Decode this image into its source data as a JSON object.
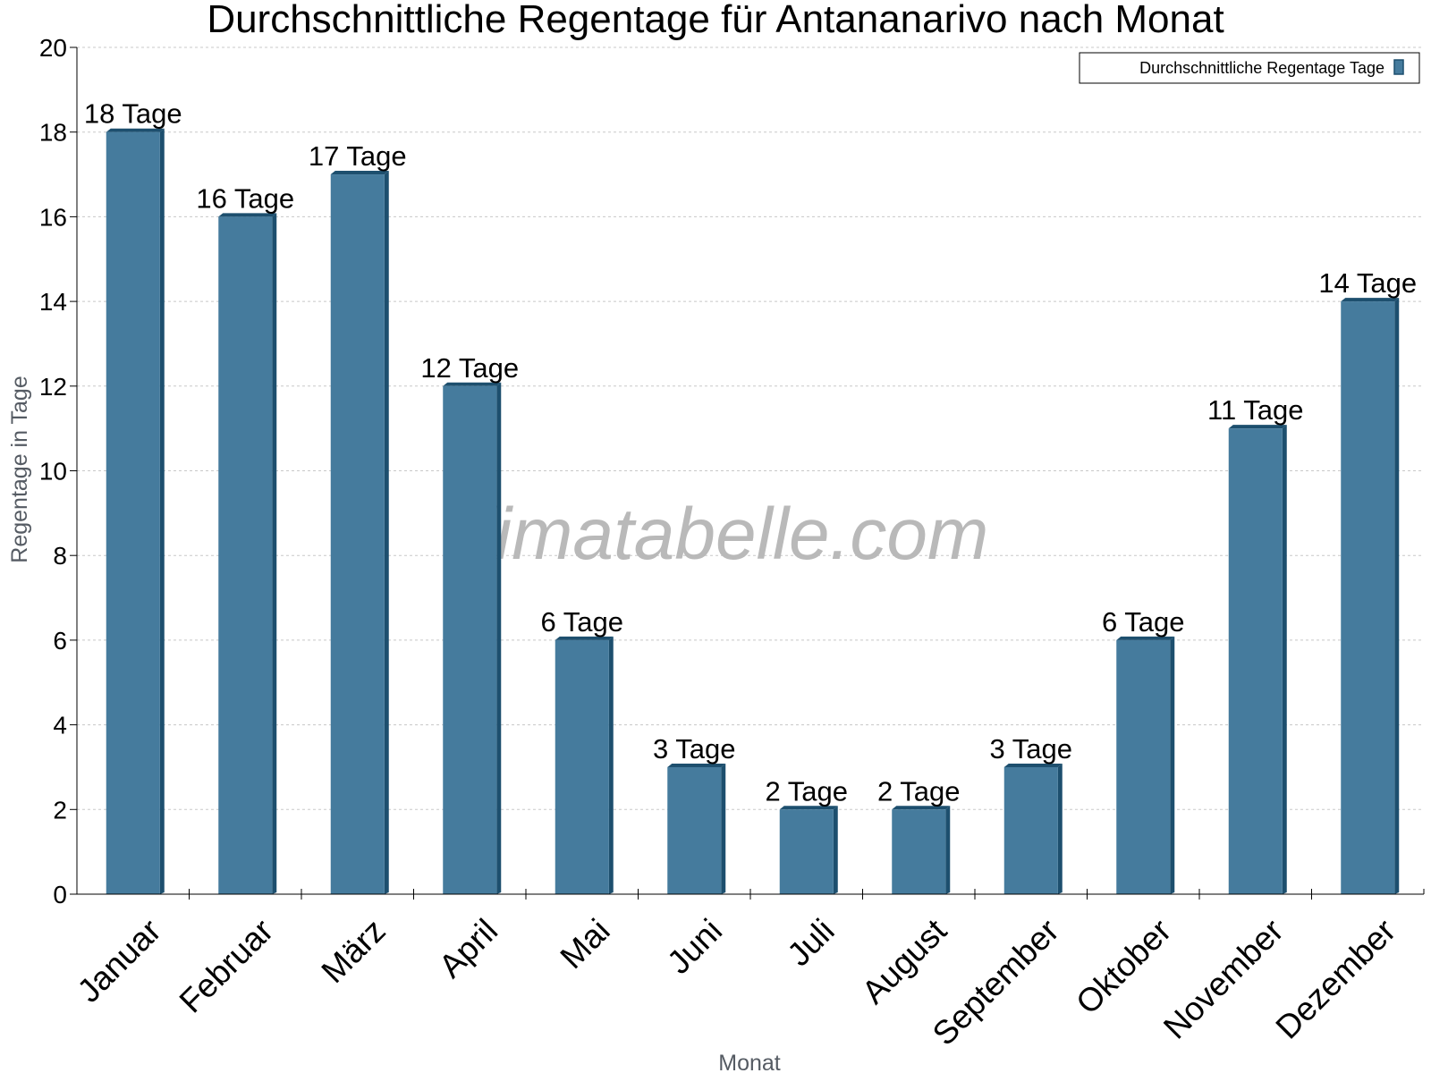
{
  "watermark": "klimatabelle.com",
  "colors": {
    "bar_face": "#457b9d",
    "bar_side": "#1d4f6e",
    "bar_top": "#1d4f6e",
    "grid": "#c8c8c8",
    "axis": "#000000"
  },
  "chart_data": {
    "type": "bar",
    "title": "Durchschnittliche Regentage für Antananarivo nach Monat",
    "xlabel": "Monat",
    "ylabel": "Regentage in Tage",
    "ylim": [
      0,
      20
    ],
    "yticks": [
      0,
      2,
      4,
      6,
      8,
      10,
      12,
      14,
      16,
      18,
      20
    ],
    "grid": true,
    "legend_position": "top-right",
    "categories": [
      "Januar",
      "Februar",
      "März",
      "April",
      "Mai",
      "Juni",
      "Juli",
      "August",
      "September",
      "Oktober",
      "November",
      "Dezember"
    ],
    "series": [
      {
        "name": "Durchschnittliche Regentage Tage",
        "values": [
          18,
          16,
          17,
          12,
          6,
          3,
          2,
          2,
          3,
          6,
          11,
          14
        ],
        "labels": [
          "18 Tage",
          "16 Tage",
          "17 Tage",
          "12 Tage",
          "6 Tage",
          "3 Tage",
          "2 Tage",
          "2 Tage",
          "3 Tage",
          "6 Tage",
          "11 Tage",
          "14 Tage"
        ]
      }
    ]
  }
}
